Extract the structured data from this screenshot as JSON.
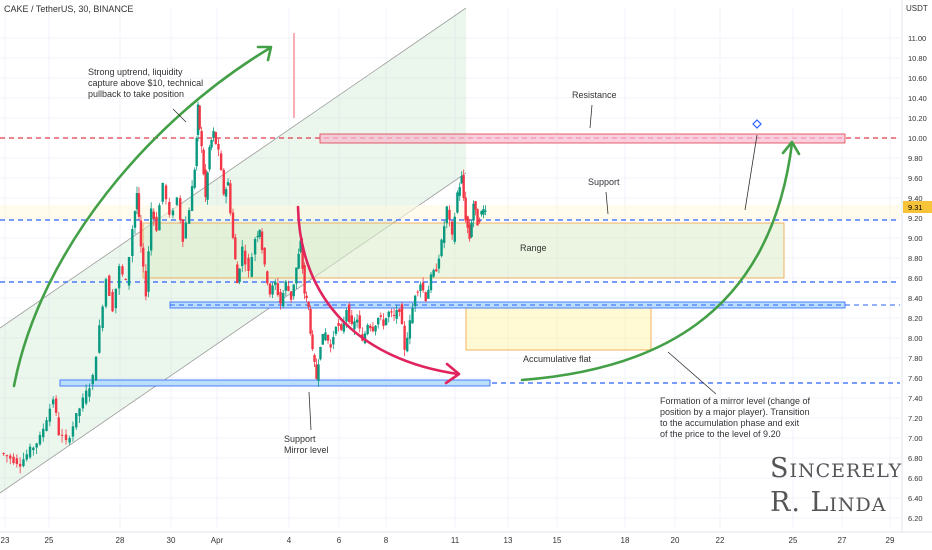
{
  "header": {
    "title": "CAKE / TetherUS, 30, BINANCE",
    "currency": "USDT"
  },
  "signature": "Sincerely\nR. Linda",
  "annotations": {
    "uptrend": "Strong uptrend, liquidity\ncapture above $10, technical\npullback to take position",
    "resistance": "Resistance",
    "support_top": "Support",
    "range": "Range",
    "accumulative": "Accumulative flat",
    "support_mirror": "Support\nMirror level",
    "mirror_formation": "Formation of a mirror level (change of\nposition by a major player). Transition\nto the accumulation phase and exit\nof the price to the level of 9.20"
  },
  "colors": {
    "up": "#089981",
    "down": "#f23645",
    "resistance": "#e03c4a",
    "support": "#2962ff",
    "green_arrow": "#43a047",
    "red_arrow": "#e0245e",
    "price_tag": "#f7c338",
    "channel": "#a5d6a7"
  },
  "chart_data": {
    "type": "candlestick",
    "title": "CAKE / TetherUS, 30, BINANCE",
    "ylim": [
      6.1,
      11.3
    ],
    "y_ticks": [
      11.0,
      10.8,
      10.6,
      10.4,
      10.2,
      10.0,
      9.8,
      9.6,
      9.4,
      9.2,
      9.0,
      8.8,
      8.6,
      8.4,
      8.2,
      8.0,
      7.8,
      7.6,
      7.4,
      7.2,
      7.0,
      6.8,
      6.6,
      6.4,
      6.2
    ],
    "y_tick_labels": [
      "11.00",
      "10.80",
      "10.60",
      "10.40",
      "10.20",
      "10.00",
      "9.80",
      "9.60",
      "9.40",
      "9.20",
      "9.00",
      "8.80",
      "8.60",
      "8.40",
      "8.20",
      "8.00",
      "7.80",
      "7.60",
      "7.40",
      "7.20",
      "7.00",
      "6.80",
      "6.60",
      "6.40",
      "6.20"
    ],
    "x_ticks": [
      "23",
      "25",
      "28",
      "30",
      "Apr",
      "4",
      "6",
      "8",
      "11",
      "13",
      "15",
      "18",
      "20",
      "22",
      "25",
      "27",
      "29"
    ],
    "current_price": 9.31,
    "current_price_label": "9.31",
    "levels": {
      "resistance": 10.0,
      "support": 9.18,
      "range_low": 8.56,
      "support_mid": 8.33,
      "mirror": 7.55
    },
    "price_path": [
      [
        0,
        6.85
      ],
      [
        1.5,
        6.75
      ],
      [
        3,
        7.0
      ],
      [
        4,
        7.4
      ],
      [
        4.4,
        7.05
      ],
      [
        5,
        6.95
      ],
      [
        6,
        7.3
      ],
      [
        7,
        7.6
      ],
      [
        7.5,
        8.1
      ],
      [
        8,
        8.6
      ],
      [
        8.5,
        8.3
      ],
      [
        9,
        8.7
      ],
      [
        9.5,
        8.55
      ],
      [
        10,
        9.1
      ],
      [
        10.3,
        9.45
      ],
      [
        10.6,
        8.9
      ],
      [
        11,
        8.45
      ],
      [
        11.4,
        9.3
      ],
      [
        11.8,
        9.1
      ],
      [
        12.3,
        9.55
      ],
      [
        12.8,
        9.2
      ],
      [
        13.4,
        9.4
      ],
      [
        13.8,
        9.0
      ],
      [
        14.3,
        9.3
      ],
      [
        14.7,
        9.7
      ],
      [
        14.9,
        10.3
      ],
      [
        15.2,
        9.9
      ],
      [
        15.5,
        9.4
      ],
      [
        15.8,
        9.9
      ],
      [
        16.1,
        10.05
      ],
      [
        16.5,
        9.85
      ],
      [
        16.9,
        9.45
      ],
      [
        17.2,
        9.55
      ],
      [
        17.6,
        9.0
      ],
      [
        17.9,
        8.55
      ],
      [
        18.3,
        8.9
      ],
      [
        18.8,
        8.65
      ],
      [
        19.3,
        9.0
      ],
      [
        19.6,
        9.1
      ],
      [
        20.0,
        8.7
      ],
      [
        20.4,
        8.45
      ],
      [
        20.8,
        8.55
      ],
      [
        21.2,
        8.35
      ],
      [
        21.6,
        8.55
      ],
      [
        22.0,
        8.4
      ],
      [
        22.4,
        8.7
      ],
      [
        22.7,
        8.95
      ],
      [
        23.0,
        8.45
      ],
      [
        23.3,
        8.3
      ],
      [
        23.6,
        7.85
      ],
      [
        23.9,
        7.6
      ],
      [
        24.2,
        7.95
      ],
      [
        24.6,
        8.05
      ],
      [
        25.0,
        7.9
      ],
      [
        25.4,
        8.15
      ],
      [
        25.8,
        8.05
      ],
      [
        26.2,
        8.3
      ],
      [
        26.6,
        8.1
      ],
      [
        27.0,
        8.2
      ],
      [
        27.4,
        7.95
      ],
      [
        27.8,
        8.15
      ],
      [
        28.2,
        8.1
      ],
      [
        28.6,
        8.2
      ],
      [
        29.0,
        8.15
      ],
      [
        29.4,
        8.25
      ],
      [
        29.8,
        8.2
      ],
      [
        30.2,
        8.3
      ],
      [
        30.6,
        7.9
      ],
      [
        31.0,
        8.15
      ],
      [
        31.4,
        8.45
      ],
      [
        31.8,
        8.55
      ],
      [
        32.2,
        8.4
      ],
      [
        32.6,
        8.6
      ],
      [
        33.0,
        8.7
      ],
      [
        33.4,
        8.95
      ],
      [
        33.8,
        9.3
      ],
      [
        34.2,
        9.0
      ],
      [
        34.6,
        9.45
      ],
      [
        34.9,
        9.6
      ],
      [
        35.2,
        9.2
      ],
      [
        35.5,
        9.0
      ],
      [
        35.8,
        9.35
      ],
      [
        36.1,
        9.15
      ],
      [
        36.4,
        9.25
      ],
      [
        36.7,
        9.31
      ]
    ]
  }
}
